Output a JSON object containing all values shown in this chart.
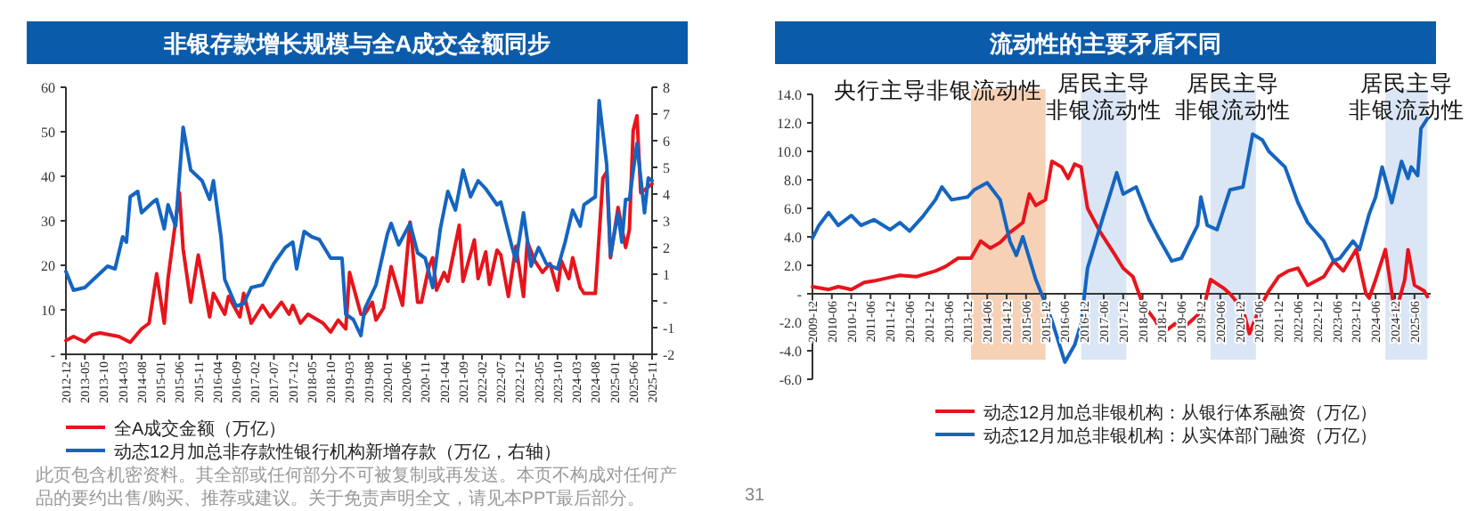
{
  "chart_data": [
    {
      "type": "line",
      "title": "非银存款增长规模与全A成交金额同步",
      "xlim": [
        "2012-12",
        "2025-11"
      ],
      "xticks": [
        "2012-12",
        "2013-05",
        "2013-10",
        "2014-03",
        "2014-08",
        "2015-01",
        "2015-06",
        "2015-11",
        "2016-04",
        "2016-09",
        "2017-02",
        "2017-07",
        "2017-12",
        "2018-05",
        "2018-10",
        "2019-03",
        "2019-08",
        "2020-01",
        "2020-06",
        "2020-11",
        "2021-04",
        "2021-09",
        "2022-02",
        "2022-07",
        "2022-12",
        "2023-05",
        "2023-10",
        "2024-03",
        "2024-08",
        "2025-01",
        "2025-06",
        "2025-11"
      ],
      "ylim": [
        0,
        60
      ],
      "yticks": [
        {
          "value": 0,
          "label": "-"
        },
        10,
        20,
        30,
        40,
        50,
        60
      ],
      "y2lim": [
        -2,
        8
      ],
      "y2ticks": [
        -2,
        -1,
        {
          "value": 0,
          "label": "-"
        },
        1,
        2,
        3,
        4,
        5,
        6,
        7,
        8
      ],
      "legend": "bottom",
      "grid": false,
      "marker": "none",
      "line_style": "solid",
      "annotations": [
        "此页包含机密资料。其全部或任何部分不可被复制或再发送。本页不构成对任何产品的要约出售/购买、推荐或建议。关于免责声明全文，请见本PPT最后部分。"
      ],
      "series": [
        {
          "name": "全A成交金额（万亿）",
          "color": "#e8141c",
          "x": [
            "2012-12",
            "2013-02",
            "2013-05",
            "2013-07",
            "2013-09",
            "2014-02",
            "2014-05",
            "2014-08",
            "2014-10",
            "2014-12",
            "2015-02",
            "2015-03",
            "2015-06",
            "2015-07",
            "2015-09",
            "2015-11",
            "2016-02",
            "2016-03",
            "2016-06",
            "2016-07",
            "2016-10",
            "2016-11",
            "2017-01",
            "2017-04",
            "2017-06",
            "2017-09",
            "2017-11",
            "2017-12",
            "2018-02",
            "2018-04",
            "2018-08",
            "2018-10",
            "2018-12",
            "2019-02",
            "2019-03",
            "2019-06",
            "2019-07",
            "2019-09",
            "2019-10",
            "2019-12",
            "2020-02",
            "2020-05",
            "2020-07",
            "2020-09",
            "2020-10",
            "2020-12",
            "2021-01",
            "2021-02",
            "2021-04",
            "2021-05",
            "2021-08",
            "2021-09",
            "2021-12",
            "2022-01",
            "2022-03",
            "2022-04",
            "2022-06",
            "2022-07",
            "2022-09",
            "2022-11",
            "2023-01",
            "2023-02",
            "2023-04",
            "2023-06",
            "2023-08",
            "2023-10",
            "2023-11",
            "2024-01",
            "2024-02",
            "2024-04",
            "2024-05",
            "2024-08",
            "2024-10",
            "2024-11",
            "2024-12",
            "2025-02",
            "2025-04",
            "2025-05",
            "2025-06",
            "2025-07",
            "2025-08",
            "2025-10",
            "2025-11"
          ],
          "values": [
            3.1,
            4.0,
            2.8,
            4.4,
            4.8,
            4.0,
            2.7,
            5.7,
            7.0,
            18.1,
            7.0,
            17.0,
            36.3,
            23.6,
            11.7,
            22.3,
            8.4,
            13.7,
            9.0,
            13.0,
            8.4,
            13.7,
            7.0,
            11.0,
            8.4,
            11.7,
            9.0,
            11.0,
            7.0,
            9.0,
            7.0,
            5.0,
            7.7,
            5.7,
            18.4,
            9.0,
            9.0,
            11.7,
            7.7,
            10.4,
            19.7,
            11.0,
            29.7,
            11.7,
            11.7,
            19.7,
            21.7,
            14.4,
            18.4,
            16.4,
            29.0,
            16.4,
            25.7,
            17.0,
            23.0,
            15.7,
            23.4,
            22.3,
            13.0,
            24.3,
            13.0,
            25.3,
            21.0,
            18.4,
            20.4,
            14.4,
            21.0,
            17.0,
            21.7,
            15.0,
            13.7,
            13.7,
            39.6,
            41.0,
            21.7,
            33.0,
            24.0,
            28.0,
            50.3,
            53.6,
            36.3,
            37.6,
            38.3
          ]
        },
        {
          "name": "动态12月加总非存款性银行机构新增存款（万亿，右轴）",
          "color": "#1565c0",
          "axis": "y2",
          "x": [
            "2012-12",
            "2013-02",
            "2013-05",
            "2013-08",
            "2013-11",
            "2014-01",
            "2014-03",
            "2014-04",
            "2014-05",
            "2014-07",
            "2014-08",
            "2014-11",
            "2014-12",
            "2015-02",
            "2015-03",
            "2015-05",
            "2015-07",
            "2015-09",
            "2015-12",
            "2016-02",
            "2016-03",
            "2016-05",
            "2016-06",
            "2016-09",
            "2016-11",
            "2017-01",
            "2017-04",
            "2017-07",
            "2017-10",
            "2017-12",
            "2018-01",
            "2018-03",
            "2018-05",
            "2018-07",
            "2018-10",
            "2019-01",
            "2019-02",
            "2019-04",
            "2019-06",
            "2019-07",
            "2019-10",
            "2020-01",
            "2020-02",
            "2020-04",
            "2020-07",
            "2020-09",
            "2020-11",
            "2021-01",
            "2021-03",
            "2021-05",
            "2021-07",
            "2021-09",
            "2021-11",
            "2022-01",
            "2022-03",
            "2022-06",
            "2022-07",
            "2022-10",
            "2022-11",
            "2023-01",
            "2023-03",
            "2023-05",
            "2023-07",
            "2023-10",
            "2023-12",
            "2024-02",
            "2024-04",
            "2024-05",
            "2024-08",
            "2024-09",
            "2024-11",
            "2024-12",
            "2025-02",
            "2025-03",
            "2025-04",
            "2025-05",
            "2025-07",
            "2025-09",
            "2025-10",
            "2025-11"
          ],
          "values": [
            1.1,
            0.4,
            0.5,
            0.9,
            1.3,
            1.2,
            2.4,
            2.2,
            3.9,
            4.1,
            3.3,
            3.7,
            3.8,
            2.7,
            3.6,
            2.8,
            6.5,
            4.9,
            4.5,
            3.8,
            4.5,
            2.4,
            0.8,
            -0.2,
            -0.1,
            0.5,
            0.6,
            1.4,
            2.0,
            2.2,
            1.2,
            2.6,
            2.4,
            2.3,
            1.6,
            1.6,
            -0.5,
            -0.7,
            -1.3,
            -0.3,
            0.6,
            2.5,
            2.9,
            2.1,
            2.9,
            1.8,
            1.6,
            0.5,
            2.7,
            4.1,
            3.4,
            4.9,
            3.9,
            4.5,
            4.2,
            3.6,
            3.7,
            2.0,
            1.5,
            3.3,
            1.3,
            2.0,
            1.4,
            1.2,
            2.2,
            3.4,
            2.8,
            3.6,
            3.9,
            7.5,
            5.1,
            1.7,
            3.3,
            2.2,
            3.8,
            3.8,
            5.9,
            3.3,
            4.6,
            4.5
          ]
        }
      ]
    },
    {
      "type": "line",
      "title": "流动性的主要矛盾不同",
      "xlim": [
        "2009-12",
        "2025-11"
      ],
      "xticks": [
        "2009-12",
        "2010-06",
        "2010-12",
        "2011-06",
        "2011-12",
        "2012-06",
        "2012-12",
        "2013-06",
        "2013-12",
        "2014-06",
        "2014-12",
        "2015-06",
        "2015-12",
        "2016-06",
        "2016-12",
        "2017-06",
        "2017-12",
        "2018-06",
        "2018-12",
        "2019-06",
        "2019-12",
        "2020-06",
        "2020-12",
        "2021-06",
        "2021-12",
        "2022-06",
        "2022-12",
        "2023-06",
        "2023-12",
        "2024-06",
        "2024-12",
        "2025-06"
      ],
      "ylim": [
        -6,
        14
      ],
      "yticks": [
        {
          "value": -6,
          "label": "-6.0"
        },
        {
          "value": -4,
          "label": "-4.0"
        },
        {
          "value": -2,
          "label": "-2.0"
        },
        {
          "value": 0,
          "label": "-"
        },
        {
          "value": 2,
          "label": "2.0"
        },
        {
          "value": 4,
          "label": "4.0"
        },
        {
          "value": 6,
          "label": "6.0"
        },
        {
          "value": 8,
          "label": "8.0"
        },
        {
          "value": 10,
          "label": "10.0"
        },
        {
          "value": 12,
          "label": "12.0"
        },
        {
          "value": 14,
          "label": "14.0"
        }
      ],
      "legend": "bottom",
      "grid": false,
      "marker": "none",
      "line_style": "solid",
      "bands": [
        {
          "axis": "x",
          "from": "2014-01",
          "to": "2015-12",
          "label": "央行主导非银流动性",
          "color": "#f4c9a8"
        },
        {
          "axis": "x",
          "from": "2016-11",
          "to": "2018-01",
          "label": "居民主导非银流动性",
          "color": "#d3e2f3"
        },
        {
          "axis": "x",
          "from": "2020-03",
          "to": "2021-05",
          "label": "居民主导非银流动性",
          "color": "#d3e2f3"
        },
        {
          "axis": "x",
          "from": "2024-09",
          "to": "2025-10",
          "label": "居民主导非银流动性",
          "color": "#d3e2f3"
        }
      ],
      "annotations": [
        "31"
      ],
      "series": [
        {
          "name": "动态12月加总非银机构：从银行体系融资（万亿）",
          "color": "#e8141c",
          "x": [
            "2009-12",
            "2010-05",
            "2010-08",
            "2010-12",
            "2011-04",
            "2011-07",
            "2011-11",
            "2012-03",
            "2012-08",
            "2013-02",
            "2013-05",
            "2013-09",
            "2014-01",
            "2014-04",
            "2014-07",
            "2014-10",
            "2015-01",
            "2015-05",
            "2015-07",
            "2015-09",
            "2015-12",
            "2016-02",
            "2016-05",
            "2016-07",
            "2016-09",
            "2016-11",
            "2017-01",
            "2017-05",
            "2017-09",
            "2017-12",
            "2018-03",
            "2018-06",
            "2018-10",
            "2018-12",
            "2019-04",
            "2019-06",
            "2019-09",
            "2019-11",
            "2020-01",
            "2020-03",
            "2020-07",
            "2020-09",
            "2021-01",
            "2021-03",
            "2021-06",
            "2021-09",
            "2021-12",
            "2022-03",
            "2022-06",
            "2022-09",
            "2023-02",
            "2023-05",
            "2023-08",
            "2023-12",
            "2024-03",
            "2024-04",
            "2024-06",
            "2024-09",
            "2024-12",
            "2025-03",
            "2025-04",
            "2025-06",
            "2025-09",
            "2025-10"
          ],
          "values": [
            0.5,
            0.3,
            0.5,
            0.3,
            0.8,
            0.9,
            1.1,
            1.3,
            1.2,
            1.6,
            1.9,
            2.5,
            2.5,
            3.7,
            3.2,
            3.6,
            4.3,
            5.0,
            7.0,
            6.2,
            6.6,
            9.3,
            8.9,
            8.1,
            9.1,
            8.9,
            6.0,
            4.3,
            2.9,
            1.8,
            1.2,
            -0.7,
            -1.9,
            -2.8,
            -2.1,
            -2.5,
            -1.9,
            -1.5,
            -0.9,
            1.0,
            0.4,
            0.0,
            -1.1,
            -2.8,
            -1.1,
            0.2,
            1.2,
            1.6,
            1.8,
            0.6,
            1.2,
            2.3,
            1.6,
            3.1,
            0.0,
            -0.3,
            1.0,
            3.1,
            -1.5,
            1.0,
            3.1,
            0.6,
            0.2,
            -0.2
          ]
        },
        {
          "name": "动态12月加总非银机构：从实体部门融资（万亿）",
          "color": "#1565c0",
          "x": [
            "2009-12",
            "2010-02",
            "2010-05",
            "2010-08",
            "2010-12",
            "2011-03",
            "2011-07",
            "2011-12",
            "2012-03",
            "2012-06",
            "2012-10",
            "2013-02",
            "2013-04",
            "2013-07",
            "2013-12",
            "2014-02",
            "2014-06",
            "2014-10",
            "2015-01",
            "2015-03",
            "2015-05",
            "2015-09",
            "2015-12",
            "2016-02",
            "2016-06",
            "2016-09",
            "2016-11",
            "2017-01",
            "2017-05",
            "2017-10",
            "2017-12",
            "2018-04",
            "2018-08",
            "2018-11",
            "2019-03",
            "2019-06",
            "2019-09",
            "2019-11",
            "2019-12",
            "2020-02",
            "2020-05",
            "2020-09",
            "2021-01",
            "2021-04",
            "2021-07",
            "2021-09",
            "2022-02",
            "2022-06",
            "2022-09",
            "2023-02",
            "2023-05",
            "2023-07",
            "2023-11",
            "2024-01",
            "2024-04",
            "2024-06",
            "2024-08",
            "2024-11",
            "2025-02",
            "2025-04",
            "2025-05",
            "2025-07",
            "2025-08",
            "2025-10"
          ],
          "values": [
            3.9,
            4.8,
            5.7,
            4.8,
            5.5,
            4.8,
            5.2,
            4.5,
            5.0,
            4.4,
            5.4,
            6.6,
            7.5,
            6.6,
            6.8,
            7.3,
            7.8,
            6.6,
            3.7,
            2.7,
            4.0,
            1.0,
            -0.7,
            -1.9,
            -4.8,
            -3.6,
            -2.1,
            1.8,
            4.8,
            8.5,
            7.0,
            7.5,
            5.2,
            3.9,
            2.3,
            2.5,
            3.9,
            4.8,
            6.8,
            4.8,
            4.5,
            7.3,
            7.5,
            11.2,
            10.8,
            10.0,
            8.9,
            6.4,
            5.0,
            3.7,
            2.3,
            2.5,
            3.7,
            3.1,
            5.6,
            6.8,
            8.9,
            6.4,
            9.3,
            8.1,
            8.9,
            8.3,
            11.6,
            12.3
          ]
        }
      ]
    }
  ]
}
